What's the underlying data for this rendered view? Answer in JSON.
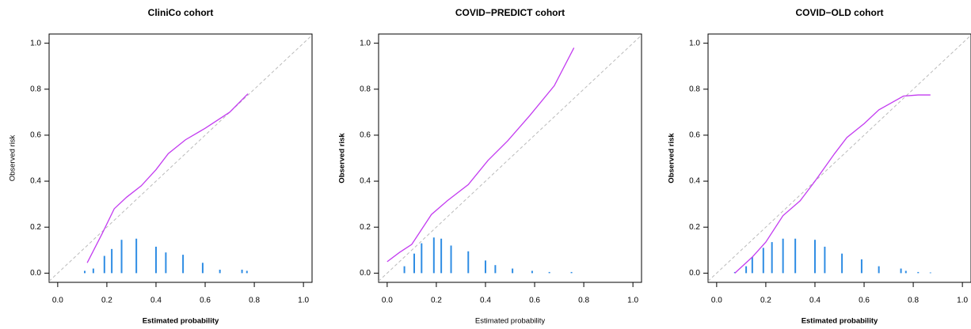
{
  "chart_data": [
    {
      "type": "line",
      "title": "CliniCo cohort",
      "xlabel": "Estimated probability",
      "ylabel": "Observed risk",
      "xlim": [
        -0.035,
        1.035
      ],
      "ylim": [
        -0.04,
        1.04
      ],
      "xticks": [
        {
          "value": 0,
          "label": "0.0"
        },
        {
          "value": 0.2,
          "label": "0.2"
        },
        {
          "value": 0.4,
          "label": "0.4"
        },
        {
          "value": 0.6,
          "label": "0.6"
        },
        {
          "value": 0.8,
          "label": "0.8"
        },
        {
          "value": 1,
          "label": "1.0"
        }
      ],
      "yticks": [
        {
          "value": 0,
          "label": "0.0"
        },
        {
          "value": 0.2,
          "label": "0.2"
        },
        {
          "value": 0.4,
          "label": "0.4"
        },
        {
          "value": 0.6,
          "label": "0.6"
        },
        {
          "value": 0.8,
          "label": "0.8"
        },
        {
          "value": 1,
          "label": "1.0"
        }
      ],
      "curve": {
        "color": "#c33cf0",
        "x": [
          0.12,
          0.18,
          0.23,
          0.28,
          0.34,
          0.4,
          0.45,
          0.52,
          0.6,
          0.7,
          0.774
        ],
        "values": [
          0.045,
          0.17,
          0.28,
          0.33,
          0.38,
          0.45,
          0.52,
          0.58,
          0.63,
          0.7,
          0.78
        ]
      },
      "spikes": {
        "color": "#2f8de4",
        "x": [
          0.11,
          0.145,
          0.19,
          0.22,
          0.26,
          0.32,
          0.4,
          0.44,
          0.51,
          0.59,
          0.66,
          0.75,
          0.77
        ],
        "values": [
          0.01,
          0.02,
          0.075,
          0.105,
          0.145,
          0.15,
          0.115,
          0.09,
          0.08,
          0.045,
          0.015,
          0.015,
          0.01
        ]
      }
    },
    {
      "type": "line",
      "title": "COVID−PREDICT cohort",
      "xlabel": "Estimated probability",
      "ylabel": "Observed risk",
      "xlim": [
        -0.035,
        1.035
      ],
      "ylim": [
        -0.04,
        1.04
      ],
      "xticks": [
        {
          "value": 0,
          "label": "0.0"
        },
        {
          "value": 0.2,
          "label": "0.2"
        },
        {
          "value": 0.4,
          "label": "0.4"
        },
        {
          "value": 0.6,
          "label": "0.6"
        },
        {
          "value": 0.8,
          "label": "0.8"
        },
        {
          "value": 1,
          "label": "1.0"
        }
      ],
      "yticks": [
        {
          "value": 0,
          "label": "0.0"
        },
        {
          "value": 0.2,
          "label": "0.2"
        },
        {
          "value": 0.4,
          "label": "0.4"
        },
        {
          "value": 0.6,
          "label": "0.6"
        },
        {
          "value": 0.8,
          "label": "0.8"
        },
        {
          "value": 1,
          "label": "1.0"
        }
      ],
      "curve": {
        "color": "#c33cf0",
        "x": [
          0.0,
          0.05,
          0.1,
          0.14,
          0.18,
          0.245,
          0.33,
          0.41,
          0.49,
          0.58,
          0.68,
          0.76
        ],
        "values": [
          0.05,
          0.09,
          0.125,
          0.19,
          0.255,
          0.315,
          0.385,
          0.49,
          0.575,
          0.685,
          0.815,
          0.98
        ]
      },
      "spikes": {
        "color": "#2f8de4",
        "x": [
          0.07,
          0.11,
          0.14,
          0.19,
          0.22,
          0.26,
          0.33,
          0.4,
          0.44,
          0.51,
          0.59,
          0.66,
          0.75
        ],
        "values": [
          0.03,
          0.085,
          0.13,
          0.155,
          0.15,
          0.12,
          0.095,
          0.055,
          0.035,
          0.02,
          0.01,
          0.005,
          0.005
        ]
      }
    },
    {
      "type": "line",
      "title": "COVID−OLD cohort",
      "xlabel": "Estimated probability",
      "ylabel": "Observed risk",
      "xlim": [
        -0.035,
        1.035
      ],
      "ylim": [
        -0.04,
        1.04
      ],
      "xticks": [
        {
          "value": 0,
          "label": "0.0"
        },
        {
          "value": 0.2,
          "label": "0.2"
        },
        {
          "value": 0.4,
          "label": "0.4"
        },
        {
          "value": 0.6,
          "label": "0.6"
        },
        {
          "value": 0.8,
          "label": "0.8"
        },
        {
          "value": 1,
          "label": "1.0"
        }
      ],
      "yticks": [
        {
          "value": 0,
          "label": "0.0"
        },
        {
          "value": 0.2,
          "label": "0.2"
        },
        {
          "value": 0.4,
          "label": "0.4"
        },
        {
          "value": 0.6,
          "label": "0.6"
        },
        {
          "value": 0.8,
          "label": "0.8"
        },
        {
          "value": 1,
          "label": "1.0"
        }
      ],
      "curve": {
        "color": "#c33cf0",
        "x": [
          0.074,
          0.145,
          0.2,
          0.27,
          0.34,
          0.4,
          0.48,
          0.53,
          0.6,
          0.66,
          0.76,
          0.82,
          0.87
        ],
        "values": [
          0.0,
          0.07,
          0.135,
          0.25,
          0.315,
          0.4,
          0.52,
          0.59,
          0.65,
          0.71,
          0.77,
          0.775,
          0.775
        ]
      },
      "spikes": {
        "color": "#2f8de4",
        "x": [
          0.074,
          0.12,
          0.145,
          0.19,
          0.225,
          0.27,
          0.32,
          0.4,
          0.44,
          0.51,
          0.59,
          0.66,
          0.75,
          0.77,
          0.82,
          0.87
        ],
        "values": [
          0.005,
          0.03,
          0.07,
          0.11,
          0.135,
          0.15,
          0.15,
          0.145,
          0.115,
          0.085,
          0.06,
          0.03,
          0.02,
          0.01,
          0.005,
          0.003
        ]
      }
    }
  ]
}
